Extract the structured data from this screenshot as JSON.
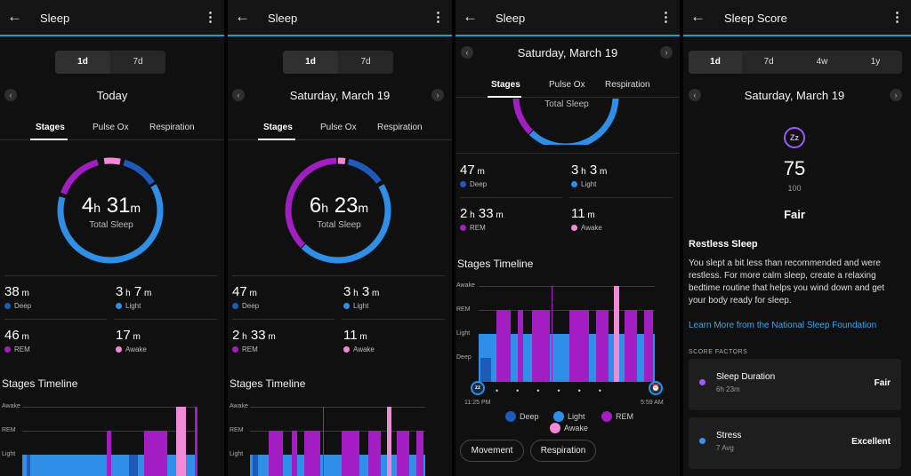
{
  "colors": {
    "deep": "#1e5bb8",
    "light": "#2f8fe6",
    "rem": "#a21ec2",
    "awake": "#f08ad6",
    "accent": "#1aa0c0"
  },
  "panel1": {
    "title": "Sleep",
    "back": "←",
    "more": "⋮",
    "seg": [
      "1d",
      "7d"
    ],
    "date": "Today",
    "tabs": [
      "Stages",
      "Pulse Ox",
      "Respiration"
    ],
    "total": {
      "h": "4",
      "hu": "h",
      "m": "31",
      "mu": "m",
      "label": "Total Sleep"
    },
    "stats": [
      {
        "v": "38",
        "u": "m",
        "l": "Deep"
      },
      {
        "v": "3",
        "u": "h",
        "v2": "7",
        "u2": "m",
        "l": "Light"
      },
      {
        "v": "46",
        "u": "m",
        "l": "REM"
      },
      {
        "v": "17",
        "u": "m",
        "l": "Awake"
      }
    ],
    "timeline_title": "Stages Timeline",
    "axis": [
      "Awake",
      "REM",
      "Light"
    ]
  },
  "panel2": {
    "title": "Sleep",
    "back": "←",
    "more": "⋮",
    "seg": [
      "1d",
      "7d"
    ],
    "date": "Saturday, March 19",
    "tabs": [
      "Stages",
      "Pulse Ox",
      "Respiration"
    ],
    "total": {
      "h": "6",
      "hu": "h",
      "m": "23",
      "mu": "m",
      "label": "Total Sleep"
    },
    "stats": [
      {
        "v": "47",
        "u": "m",
        "l": "Deep"
      },
      {
        "v": "3",
        "u": "h",
        "v2": "3",
        "u2": "m",
        "l": "Light"
      },
      {
        "v": "2",
        "u": "h",
        "v2": "33",
        "u2": "m",
        "l": "REM"
      },
      {
        "v": "11",
        "u": "m",
        "l": "Awake"
      }
    ],
    "timeline_title": "Stages Timeline",
    "axis": [
      "Awake",
      "REM",
      "Light"
    ]
  },
  "panel3": {
    "title": "Sleep",
    "back": "←",
    "more": "⋮",
    "date": "Saturday, March 19",
    "tabs": [
      "Stages",
      "Pulse Ox",
      "Respiration"
    ],
    "ring_label": "Total Sleep",
    "stats": [
      {
        "v": "47",
        "u": "m",
        "l": "Deep"
      },
      {
        "v": "3",
        "u": "h",
        "v2": "3",
        "u2": "m",
        "l": "Light"
      },
      {
        "v": "2",
        "u": "h",
        "v2": "33",
        "u2": "m",
        "l": "REM"
      },
      {
        "v": "11",
        "u": "m",
        "l": "Awake"
      }
    ],
    "timeline_title": "Stages Timeline",
    "axis": [
      "Awake",
      "REM",
      "Light",
      "Deep"
    ],
    "start_time": "11:25 PM",
    "end_time": "5:59 AM",
    "legend": [
      "Deep",
      "Light",
      "REM",
      "Awake"
    ],
    "pills": [
      "Movement",
      "Respiration"
    ]
  },
  "panel4": {
    "title": "Sleep Score",
    "back": "←",
    "more": "⋮",
    "seg": [
      "1d",
      "7d",
      "4w",
      "1y"
    ],
    "date": "Saturday, March 19",
    "score": "75",
    "max": "100",
    "quality": "Fair",
    "heading": "Restless Sleep",
    "body": "You slept a bit less than recommended and were restless. For more calm sleep, create a relaxing bedtime routine that helps you wind down and get your body ready for sleep.",
    "link": "Learn More from the National Sleep Foundation",
    "factors_caption": "SCORE FACTORS",
    "factors": [
      {
        "name": "Sleep Duration",
        "sub": "6h 23m",
        "rating": "Fair",
        "color": "#9a5cf5"
      },
      {
        "name": "Stress",
        "sub": "7 Avg",
        "rating": "Excellent",
        "color": "#3d8ff0"
      }
    ]
  }
}
